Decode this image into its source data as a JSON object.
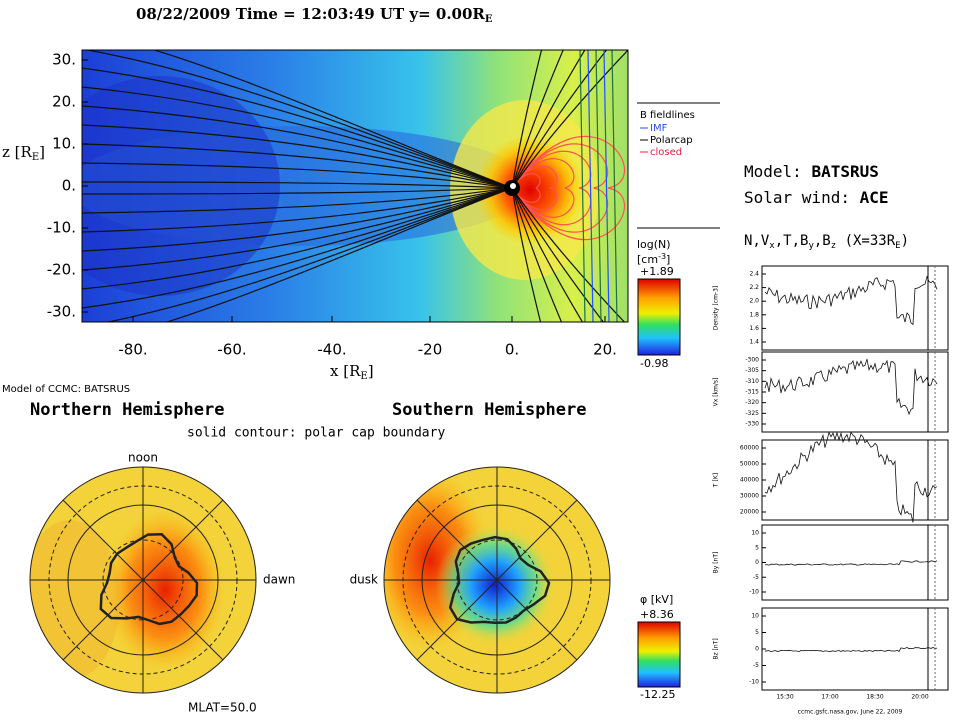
{
  "header": {
    "date": "08/22/2009",
    "time": "Time = 12:03:49 UT",
    "y": "y= 0.00R",
    "y_sub": "E"
  },
  "top_plot": {
    "ylabel": "z [R",
    "ylabel_sub": "E",
    "ylabel_end": "]",
    "xlabel": "x [R",
    "xlabel_sub": "E",
    "xlabel_end": "]",
    "yticks": [
      "30.",
      "20.",
      "10.",
      "0.",
      "-10.",
      "-20.",
      "-30."
    ],
    "xticks": [
      "-80.",
      "-60.",
      "-40.",
      "-20",
      "0.",
      "20."
    ]
  },
  "legend": {
    "title": "B fieldlines",
    "items": [
      "IMF",
      "Polarcap",
      "closed"
    ]
  },
  "colorbar_top": {
    "label": "log(N)",
    "unit": "[cm",
    "unit_sup": "-3",
    "unit_end": "]",
    "max": "+1.89",
    "min": "-0.98"
  },
  "model": {
    "model_label": "Model:",
    "model": "BATSRUS",
    "wind_label": "Solar wind:",
    "wind": "ACE"
  },
  "ts_title": {
    "a": "N,V",
    "a_sub": "x",
    "b": ",T,B",
    "b_sub": "y",
    "c": ",B",
    "c_sub": "z",
    "d": " (X=33R",
    "d_sub": "E",
    "e": ")"
  },
  "ionosphere": {
    "credit": "Model of CCMC: BATSRUS",
    "north": "Northern Hemisphere",
    "south": "Southern Hemisphere",
    "subtitle": "solid contour: polar cap boundary",
    "noon": "noon",
    "dawn": "dawn",
    "dusk": "dusk",
    "mlat": "MLAT=50.0"
  },
  "colorbar_bottom": {
    "label": "φ [kV]",
    "max": "+8.36",
    "min": "-12.25"
  },
  "timeseries": {
    "panels": [
      {
        "ylabel": "Density [cm-3]",
        "ticks": [
          "2.4",
          "2.2",
          "2.0",
          "1.8",
          "1.6",
          "1.4"
        ]
      },
      {
        "ylabel": "Vx [km/s]",
        "ticks": [
          "-300",
          "-305",
          "-310",
          "-315",
          "-320",
          "-325",
          "-330"
        ]
      },
      {
        "ylabel": "T [K]",
        "ticks": [
          "60000",
          "50000",
          "40000",
          "30000",
          "20000"
        ]
      },
      {
        "ylabel": "By [nT]",
        "ticks": [
          "10",
          "5",
          "0",
          "-5",
          "-10"
        ]
      },
      {
        "ylabel": "Bz [nT]",
        "ticks": [
          "10",
          "5",
          "0",
          "-5",
          "-10"
        ]
      }
    ],
    "xticks": [
      "15:30",
      "17:00",
      "18:30",
      "20:00"
    ],
    "footer": "ccmc.gsfc.nasa.gov, June 22, 2009"
  }
}
